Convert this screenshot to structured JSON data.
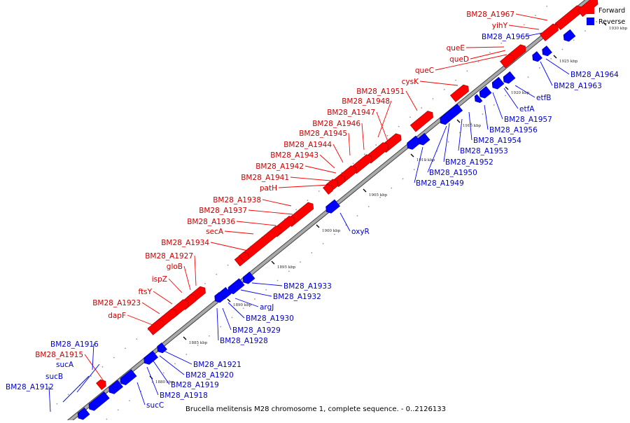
{
  "caption": "Brucella melitensis M28 chromosome 1, complete sequence. - 0..2126133",
  "legend": [
    {
      "label": "Forward",
      "color": "#ff0000"
    },
    {
      "label": "Reverse",
      "color": "#0000ff"
    }
  ],
  "colors": {
    "forward": "#ff0000",
    "reverse": "#0000ff",
    "label_forward": "#cc0000",
    "label_reverse": "#0000cc",
    "backbone": "#aaaaaa"
  },
  "ticks": [
    "1880 kbp",
    "1885 kbp",
    "1890 kbp",
    "1895 kbp",
    "1900 kbp",
    "1905 kbp",
    "1910 kbp",
    "1915 kbp",
    "1920 kbp",
    "1925 kbp",
    "1930 kbp"
  ],
  "forward_genes": [
    {
      "label": "BM28_A1967"
    },
    {
      "label": "yihY"
    },
    {
      "label": "queE"
    },
    {
      "label": "queD"
    },
    {
      "label": "queC"
    },
    {
      "label": "cysK"
    },
    {
      "label": "BM28_A1951"
    },
    {
      "label": "BM28_A1948"
    },
    {
      "label": "BM28_A1947"
    },
    {
      "label": "BM28_A1946"
    },
    {
      "label": "BM28_A1945"
    },
    {
      "label": "BM28_A1944"
    },
    {
      "label": "BM28_A1943"
    },
    {
      "label": "BM28_A1942"
    },
    {
      "label": "BM28_A1941"
    },
    {
      "label": "patH"
    },
    {
      "label": "BM28_A1938"
    },
    {
      "label": "BM28_A1937"
    },
    {
      "label": "BM28_A1936"
    },
    {
      "label": "secA"
    },
    {
      "label": "BM28_A1934"
    },
    {
      "label": "BM28_A1927"
    },
    {
      "label": "gloB"
    },
    {
      "label": "ispZ"
    },
    {
      "label": "ftsY"
    },
    {
      "label": "BM28_A1923"
    },
    {
      "label": "dapF"
    },
    {
      "label": "BM28_A1915"
    }
  ],
  "reverse_genes": [
    {
      "label": "BM28_A1965"
    },
    {
      "label": "BM28_A1964"
    },
    {
      "label": "BM28_A1963"
    },
    {
      "label": "etfB"
    },
    {
      "label": "etfA"
    },
    {
      "label": "BM28_A1957"
    },
    {
      "label": "BM28_A1956"
    },
    {
      "label": "BM28_A1954"
    },
    {
      "label": "BM28_A1953"
    },
    {
      "label": "BM28_A1952"
    },
    {
      "label": "BM28_A1950"
    },
    {
      "label": "BM28_A1949"
    },
    {
      "label": "oxyR"
    },
    {
      "label": "BM28_A1933"
    },
    {
      "label": "BM28_A1932"
    },
    {
      "label": "argJ"
    },
    {
      "label": "BM28_A1930"
    },
    {
      "label": "BM28_A1929"
    },
    {
      "label": "BM28_A1928"
    },
    {
      "label": "BM28_A1921"
    },
    {
      "label": "BM28_A1920"
    },
    {
      "label": "BM28_A1919"
    },
    {
      "label": "BM28_A1918"
    },
    {
      "label": "sucC"
    },
    {
      "label": "BM28_A1916"
    },
    {
      "label": "sucA"
    },
    {
      "label": "sucB"
    },
    {
      "label": "BM28_A1912"
    }
  ]
}
